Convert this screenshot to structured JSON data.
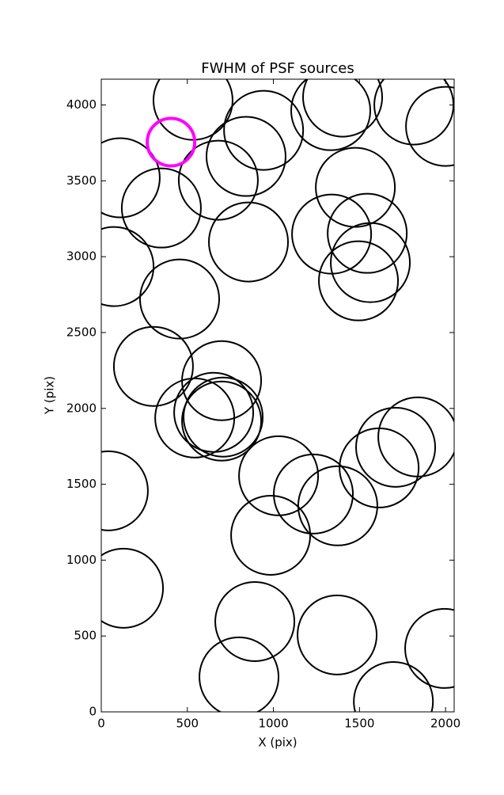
{
  "chart_data": {
    "type": "scatter",
    "title": "FWHM of PSF sources",
    "x_label": "X (pix)",
    "y_label": "Y (pix)",
    "xlim": [
      0,
      2050
    ],
    "ylim": [
      0,
      4170
    ],
    "xticks": [
      0,
      500,
      1000,
      1500,
      2000
    ],
    "yticks": [
      0,
      500,
      1000,
      1500,
      2000,
      2500,
      3000,
      3500,
      4000
    ],
    "series": [
      {
        "color": "#000000",
        "x": [
          533,
          943,
          1333,
          1402,
          1816,
          2000,
          110,
          349,
          680,
          841,
          855,
          1476,
          1338,
          1545,
          1563,
          1494,
          74,
          455,
          303,
          699,
          543,
          653,
          708,
          699,
          1030,
          1232,
          1374,
          1614,
          1710,
          1839,
          41,
          984,
          129,
          892,
          1370,
          800,
          1697,
          1995
        ],
        "y": [
          4031,
          3833,
          3963,
          4052,
          4000,
          3859,
          3520,
          3321,
          3504,
          3661,
          3097,
          3457,
          3149,
          3154,
          2961,
          2841,
          2935,
          2721,
          2277,
          2183,
          1937,
          1974,
          1943,
          1917,
          1556,
          1436,
          1358,
          1608,
          1744,
          1812,
          1457,
          1164,
          815,
          595,
          507,
          230,
          68,
          418
        ]
      },
      {
        "color": "#ff00ff",
        "x": [
          405
        ],
        "y": [
          3755
        ]
      }
    ]
  }
}
